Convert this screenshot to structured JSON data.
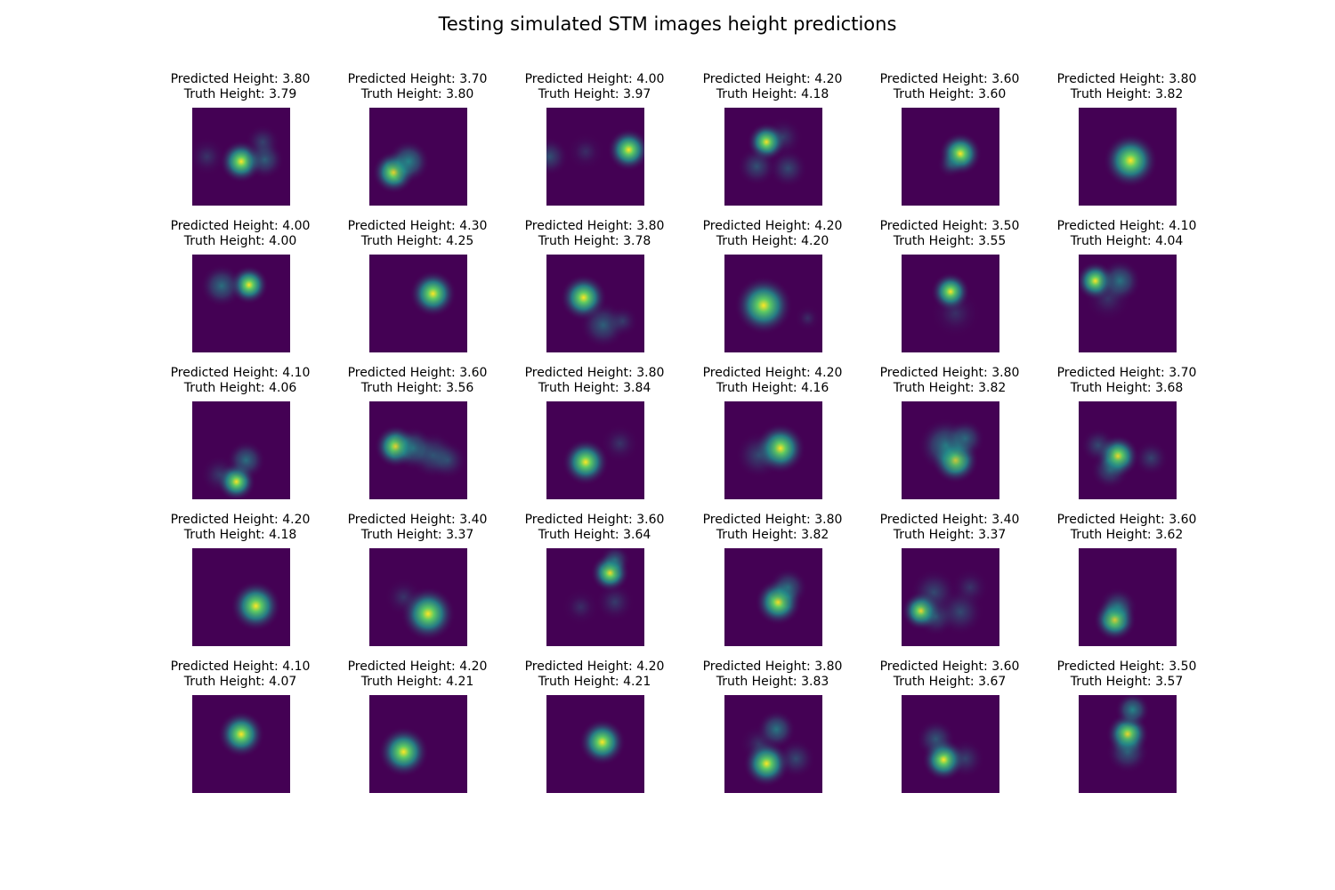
{
  "title": "Testing simulated STM images height predictions",
  "pred_prefix": "Predicted Height: ",
  "truth_prefix": "Truth Height: ",
  "colors": {
    "background": "#440154",
    "mid": "#21918c",
    "high": "#5ec962",
    "peak": "#fde725"
  },
  "panels": [
    {
      "pred": "3.80",
      "truth": "3.79",
      "blobs": [
        [
          0.5,
          0.55,
          0.11,
          1.0
        ],
        [
          0.74,
          0.53,
          0.1,
          0.45
        ],
        [
          0.72,
          0.35,
          0.09,
          0.25
        ],
        [
          0.15,
          0.5,
          0.1,
          0.15
        ]
      ]
    },
    {
      "pred": "3.70",
      "truth": "3.80",
      "blobs": [
        [
          0.25,
          0.66,
          0.11,
          1.0
        ],
        [
          0.4,
          0.55,
          0.11,
          0.7
        ]
      ]
    },
    {
      "pred": "4.00",
      "truth": "3.97",
      "blobs": [
        [
          0.84,
          0.43,
          0.11,
          1.0
        ],
        [
          0.03,
          0.5,
          0.1,
          0.35
        ],
        [
          0.4,
          0.45,
          0.1,
          0.1
        ]
      ]
    },
    {
      "pred": "4.20",
      "truth": "4.18",
      "blobs": [
        [
          0.43,
          0.35,
          0.1,
          1.0
        ],
        [
          0.33,
          0.6,
          0.1,
          0.35
        ],
        [
          0.65,
          0.62,
          0.1,
          0.3
        ],
        [
          0.6,
          0.3,
          0.1,
          0.2
        ]
      ]
    },
    {
      "pred": "3.60",
      "truth": "3.60",
      "blobs": [
        [
          0.6,
          0.47,
          0.11,
          1.0
        ],
        [
          0.5,
          0.58,
          0.07,
          0.3
        ]
      ]
    },
    {
      "pred": "3.80",
      "truth": "3.82",
      "blobs": [
        [
          0.53,
          0.54,
          0.14,
          1.0
        ]
      ]
    },
    {
      "pred": "4.00",
      "truth": "4.00",
      "blobs": [
        [
          0.58,
          0.31,
          0.1,
          1.0
        ],
        [
          0.3,
          0.32,
          0.11,
          0.55
        ]
      ]
    },
    {
      "pred": "4.30",
      "truth": "4.25",
      "blobs": [
        [
          0.65,
          0.4,
          0.12,
          1.0
        ]
      ]
    },
    {
      "pred": "3.80",
      "truth": "3.78",
      "blobs": [
        [
          0.38,
          0.44,
          0.12,
          1.0
        ],
        [
          0.58,
          0.72,
          0.12,
          0.45
        ],
        [
          0.78,
          0.68,
          0.08,
          0.2
        ]
      ]
    },
    {
      "pred": "4.20",
      "truth": "4.20",
      "blobs": [
        [
          0.4,
          0.52,
          0.15,
          1.0
        ],
        [
          0.85,
          0.65,
          0.07,
          0.1
        ]
      ]
    },
    {
      "pred": "3.50",
      "truth": "3.55",
      "blobs": [
        [
          0.5,
          0.38,
          0.1,
          1.0
        ],
        [
          0.55,
          0.6,
          0.13,
          0.12
        ]
      ]
    },
    {
      "pred": "4.10",
      "truth": "4.04",
      "blobs": [
        [
          0.17,
          0.27,
          0.1,
          1.0
        ],
        [
          0.42,
          0.27,
          0.11,
          0.6
        ],
        [
          0.3,
          0.45,
          0.12,
          0.15
        ]
      ]
    },
    {
      "pred": "4.10",
      "truth": "4.06",
      "blobs": [
        [
          0.45,
          0.82,
          0.1,
          1.0
        ],
        [
          0.55,
          0.6,
          0.1,
          0.55
        ],
        [
          0.28,
          0.75,
          0.1,
          0.2
        ]
      ]
    },
    {
      "pred": "3.60",
      "truth": "3.56",
      "blobs": [
        [
          0.27,
          0.46,
          0.11,
          1.0
        ],
        [
          0.45,
          0.48,
          0.11,
          0.6
        ],
        [
          0.65,
          0.55,
          0.12,
          0.4
        ],
        [
          0.8,
          0.6,
          0.1,
          0.3
        ]
      ]
    },
    {
      "pred": "3.80",
      "truth": "3.84",
      "blobs": [
        [
          0.4,
          0.62,
          0.12,
          1.0
        ],
        [
          0.75,
          0.43,
          0.1,
          0.15
        ]
      ]
    },
    {
      "pred": "4.20",
      "truth": "4.16",
      "blobs": [
        [
          0.57,
          0.48,
          0.13,
          1.0
        ],
        [
          0.35,
          0.55,
          0.12,
          0.3
        ]
      ]
    },
    {
      "pred": "3.80",
      "truth": "3.82",
      "blobs": [
        [
          0.55,
          0.6,
          0.12,
          1.0
        ],
        [
          0.45,
          0.45,
          0.14,
          0.6
        ],
        [
          0.65,
          0.38,
          0.1,
          0.5
        ]
      ]
    },
    {
      "pred": "3.70",
      "truth": "3.68",
      "blobs": [
        [
          0.4,
          0.56,
          0.11,
          1.0
        ],
        [
          0.32,
          0.7,
          0.1,
          0.4
        ],
        [
          0.2,
          0.45,
          0.09,
          0.3
        ],
        [
          0.74,
          0.58,
          0.09,
          0.25
        ]
      ]
    },
    {
      "pred": "4.20",
      "truth": "4.18",
      "blobs": [
        [
          0.65,
          0.59,
          0.13,
          1.0
        ]
      ]
    },
    {
      "pred": "3.40",
      "truth": "3.37",
      "blobs": [
        [
          0.6,
          0.67,
          0.14,
          1.0
        ],
        [
          0.35,
          0.5,
          0.1,
          0.15
        ]
      ]
    },
    {
      "pred": "3.60",
      "truth": "3.64",
      "blobs": [
        [
          0.65,
          0.25,
          0.1,
          1.0
        ],
        [
          0.7,
          0.12,
          0.08,
          0.45
        ],
        [
          0.7,
          0.55,
          0.1,
          0.2
        ],
        [
          0.35,
          0.6,
          0.1,
          0.1
        ]
      ]
    },
    {
      "pred": "3.80",
      "truth": "3.82",
      "blobs": [
        [
          0.55,
          0.55,
          0.12,
          1.0
        ],
        [
          0.65,
          0.4,
          0.1,
          0.5
        ]
      ]
    },
    {
      "pred": "3.40",
      "truth": "3.37",
      "blobs": [
        [
          0.2,
          0.64,
          0.1,
          1.0
        ],
        [
          0.35,
          0.7,
          0.1,
          0.35
        ],
        [
          0.33,
          0.45,
          0.12,
          0.3
        ],
        [
          0.6,
          0.65,
          0.12,
          0.3
        ],
        [
          0.7,
          0.4,
          0.1,
          0.15
        ]
      ]
    },
    {
      "pred": "3.60",
      "truth": "3.62",
      "blobs": [
        [
          0.37,
          0.73,
          0.11,
          1.0
        ],
        [
          0.4,
          0.6,
          0.1,
          0.5
        ]
      ]
    },
    {
      "pred": "4.10",
      "truth": "4.07",
      "blobs": [
        [
          0.5,
          0.4,
          0.12,
          1.0
        ]
      ]
    },
    {
      "pred": "4.20",
      "truth": "4.21",
      "blobs": [
        [
          0.35,
          0.58,
          0.13,
          1.0
        ]
      ]
    },
    {
      "pred": "4.20",
      "truth": "4.21",
      "blobs": [
        [
          0.57,
          0.48,
          0.12,
          1.0
        ]
      ]
    },
    {
      "pred": "3.80",
      "truth": "3.83",
      "blobs": [
        [
          0.43,
          0.7,
          0.12,
          1.0
        ],
        [
          0.53,
          0.35,
          0.1,
          0.6
        ],
        [
          0.73,
          0.65,
          0.1,
          0.3
        ],
        [
          0.35,
          0.5,
          0.1,
          0.15
        ]
      ]
    },
    {
      "pred": "3.60",
      "truth": "3.67",
      "blobs": [
        [
          0.43,
          0.66,
          0.11,
          1.0
        ],
        [
          0.35,
          0.45,
          0.1,
          0.4
        ],
        [
          0.65,
          0.65,
          0.1,
          0.25
        ]
      ]
    },
    {
      "pred": "3.50",
      "truth": "3.57",
      "blobs": [
        [
          0.5,
          0.4,
          0.11,
          1.0
        ],
        [
          0.55,
          0.15,
          0.09,
          0.7
        ],
        [
          0.5,
          0.58,
          0.11,
          0.45
        ]
      ]
    }
  ]
}
